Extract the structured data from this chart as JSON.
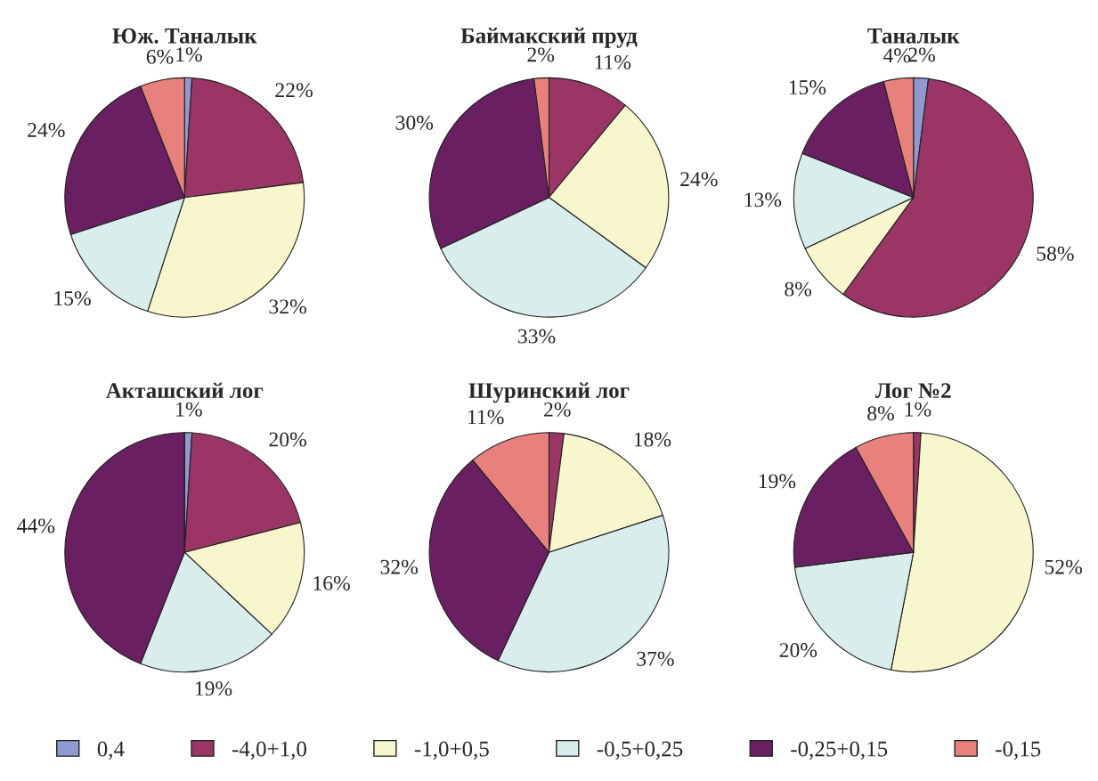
{
  "chart_data": [
    {
      "type": "pie",
      "title": "Юж. Таналык",
      "categories": [
        "0,4",
        "-4,0+1,0",
        "-1,0+0,5",
        "-0,5+0,25",
        "-0,25+0,15",
        "-0,15"
      ],
      "values": [
        1,
        22,
        32,
        15,
        24,
        6
      ],
      "value_labels": [
        "1%",
        "22%",
        "32%",
        "15%",
        "24%",
        "6%"
      ],
      "colors": [
        "#8e9ad0",
        "#9b3566",
        "#f8f6cc",
        "#d9eded",
        "#6a1f62",
        "#e8817c"
      ],
      "legend": "bottom"
    },
    {
      "type": "pie",
      "title": "Баймакский пруд",
      "categories": [
        null,
        null,
        null,
        null,
        null,
        null
      ],
      "values": [
        0,
        11,
        24,
        33,
        30,
        2
      ],
      "value_labels": [
        null,
        "11%",
        "24%",
        "33%",
        "30%",
        "2%"
      ],
      "colors": [
        "#8e9ad0",
        "#9b3566",
        "#f8f6cc",
        "#d9eded",
        "#6a1f62",
        "#e8817c"
      ]
    },
    {
      "type": "pie",
      "title": "Таналык",
      "categories": [
        null,
        null,
        null,
        null,
        null,
        null
      ],
      "values": [
        2,
        58,
        8,
        13,
        15,
        4
      ],
      "value_labels": [
        "2%",
        "58%",
        "8%",
        "13%",
        "15%",
        "4%"
      ],
      "colors": [
        "#8e9ad0",
        "#9b3566",
        "#f8f6cc",
        "#d9eded",
        "#6a1f62",
        "#e8817c"
      ]
    },
    {
      "type": "pie",
      "title": "Акташский лог",
      "categories": [
        null,
        null,
        null,
        null,
        null,
        null
      ],
      "values": [
        1,
        20,
        16,
        19,
        44,
        0
      ],
      "value_labels": [
        "1%",
        "20%",
        "16%",
        "19%",
        "44%",
        null
      ],
      "colors": [
        "#8e9ad0",
        "#9b3566",
        "#f8f6cc",
        "#d9eded",
        "#6a1f62",
        "#e8817c"
      ]
    },
    {
      "type": "pie",
      "title": "Шуринский лог",
      "categories": [
        null,
        null,
        null,
        null,
        null,
        null
      ],
      "values": [
        0,
        2,
        18,
        37,
        32,
        11
      ],
      "value_labels": [
        null,
        "2%",
        "18%",
        "37%",
        "32%",
        "11%"
      ],
      "colors": [
        "#8e9ad0",
        "#9b3566",
        "#f8f6cc",
        "#d9eded",
        "#6a1f62",
        "#e8817c"
      ]
    },
    {
      "type": "pie",
      "title": "Лог №2",
      "categories": [
        null,
        null,
        null,
        null,
        null,
        null
      ],
      "values": [
        0,
        1,
        52,
        20,
        19,
        8
      ],
      "value_labels": [
        null,
        "1%",
        "52%",
        "20%",
        "19%",
        "8%"
      ],
      "colors": [
        "#8e9ad0",
        "#9b3566",
        "#f8f6cc",
        "#d9eded",
        "#6a1f62",
        "#e8817c"
      ]
    }
  ]
}
